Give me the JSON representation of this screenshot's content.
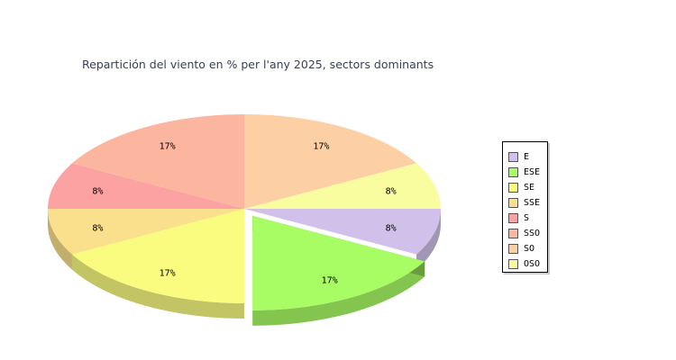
{
  "chart_data": {
    "type": "pie",
    "title": "Repartición del viento en % per l'any 2025, sectors dominants",
    "categories": [
      "E",
      "ESE",
      "SE",
      "SSE",
      "S",
      "SSO",
      "SO",
      "OSO"
    ],
    "values": [
      8,
      17,
      17,
      8,
      8,
      17,
      17,
      8
    ],
    "labels": [
      "8%",
      "17%",
      "17%",
      "8%",
      "8%",
      "17%",
      "17%",
      "8%"
    ],
    "colors": [
      "#d0c0ea",
      "#a8fc64",
      "#fafc80",
      "#fae08c",
      "#fca2a2",
      "#fcb6a0",
      "#fcd0a4",
      "#fafca0"
    ],
    "exploded": "ESE",
    "legend_position": "right"
  }
}
